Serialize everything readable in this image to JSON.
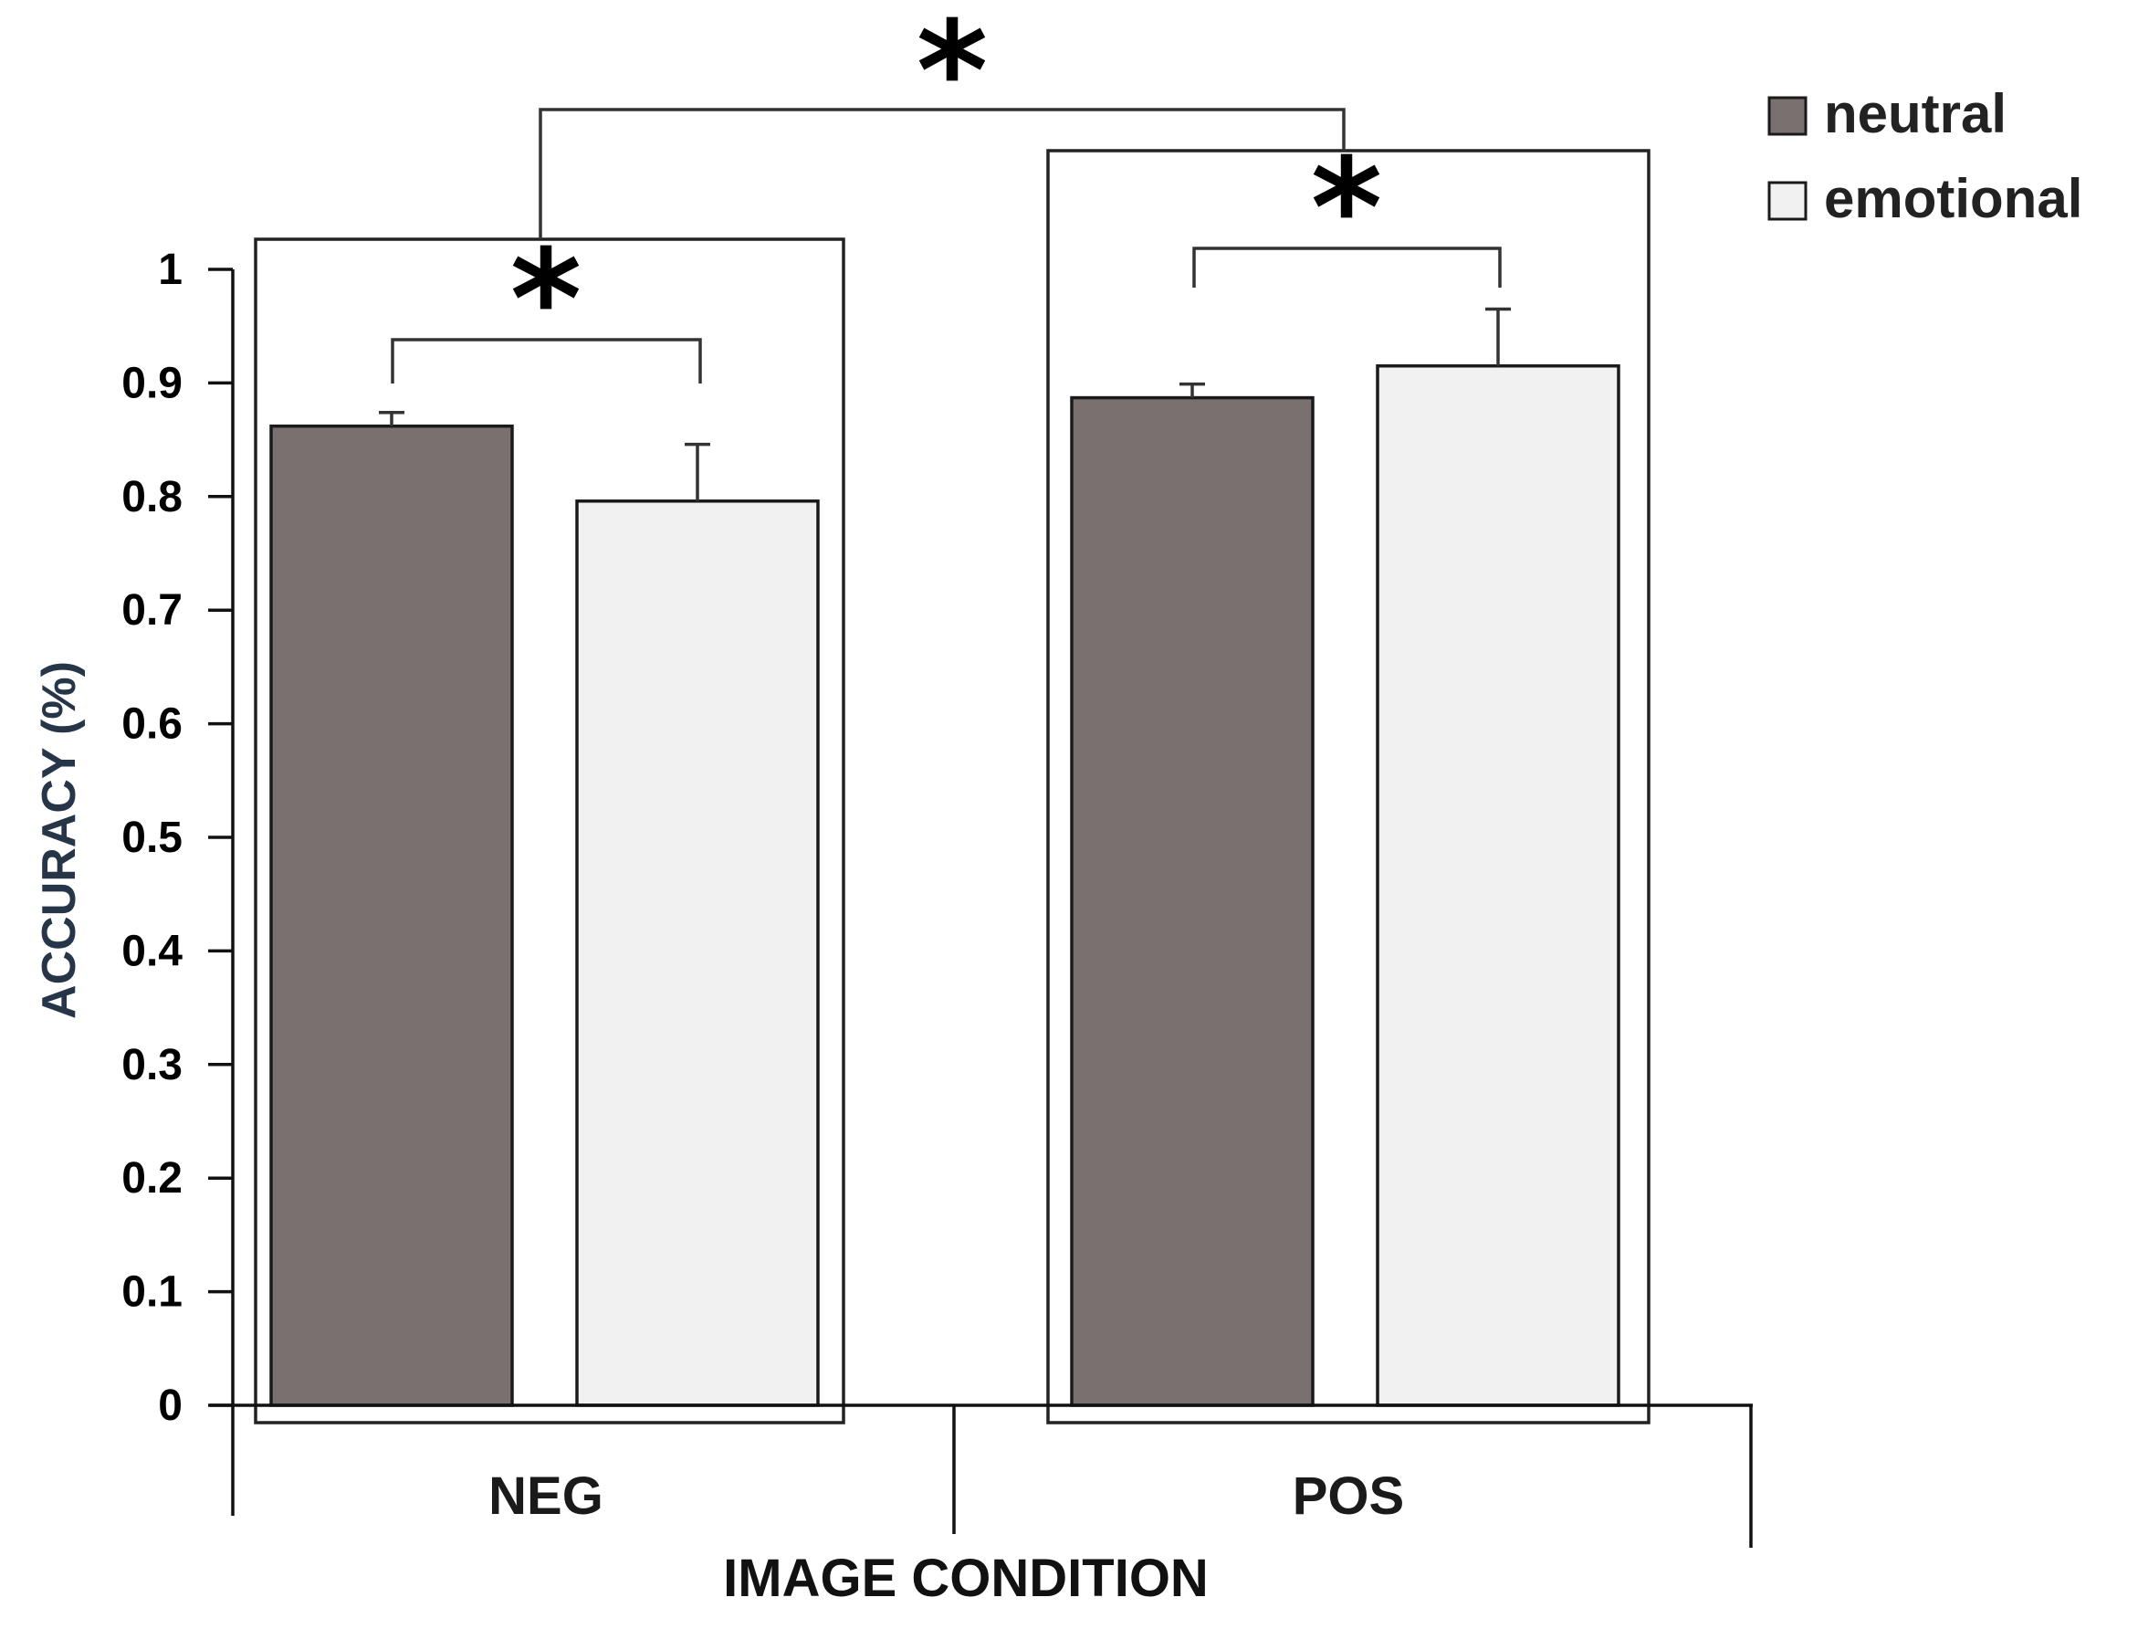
{
  "chart_data": {
    "type": "bar",
    "title": "",
    "xlabel": "IMAGE CONDITION",
    "ylabel": "ACCURACY (%)",
    "ylim": [
      0,
      1
    ],
    "yticks": [
      "0",
      "0.1",
      "0.2",
      "0.3",
      "0.4",
      "0.5",
      "0.6",
      "0.7",
      "0.8",
      "0.9",
      "1"
    ],
    "categories": [
      "NEG",
      "POS"
    ],
    "series": [
      {
        "name": "neutral",
        "color": "#787170",
        "values": [
          0.862,
          0.887
        ],
        "errors": [
          0.012,
          0.012
        ]
      },
      {
        "name": "emotional",
        "color": "#f1f1f1",
        "values": [
          0.796,
          0.915
        ],
        "errors": [
          0.05,
          0.05
        ]
      }
    ],
    "legend": {
      "position": "top-right"
    },
    "significance": {
      "symbol": "*",
      "marks": [
        "NEG neutral vs emotional",
        "POS neutral vs emotional",
        "NEG vs POS"
      ]
    },
    "grid": false
  }
}
